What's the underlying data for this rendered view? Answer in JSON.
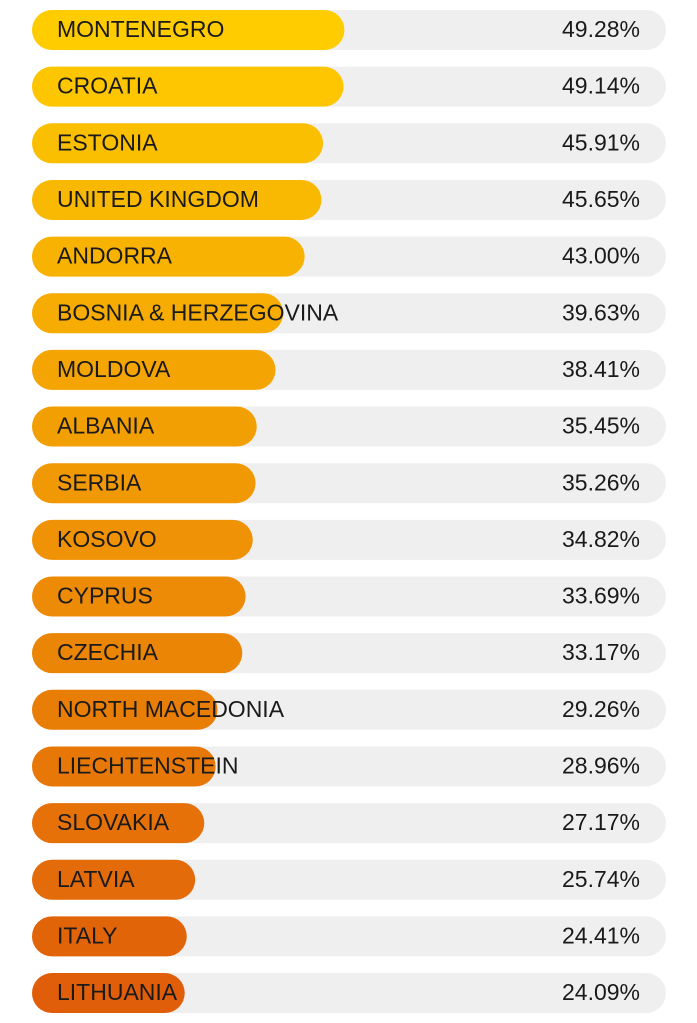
{
  "chart_data": {
    "type": "bar",
    "categories": [
      "MONTENEGRO",
      "CROATIA",
      "ESTONIA",
      "UNITED KINGDOM",
      "ANDORRA",
      "BOSNIA & HERZEGOVINA",
      "MOLDOVA",
      "ALBANIA",
      "SERBIA",
      "KOSOVO",
      "CYPRUS",
      "CZECHIA",
      "NORTH MACEDONIA",
      "LIECHTENSTEIN",
      "SLOVAKIA",
      "LATVIA",
      "ITALY",
      "LITHUANIA"
    ],
    "values": [
      49.28,
      49.14,
      45.91,
      45.65,
      43.0,
      39.63,
      38.41,
      35.45,
      35.26,
      34.82,
      33.69,
      33.17,
      29.26,
      28.96,
      27.17,
      25.74,
      24.41,
      24.09
    ],
    "value_labels": [
      "49.28%",
      "49.14%",
      "45.91%",
      "45.65%",
      "43.00%",
      "39.63%",
      "38.41%",
      "35.45%",
      "35.26%",
      "34.82%",
      "33.69%",
      "33.17%",
      "29.26%",
      "28.96%",
      "27.17%",
      "25.74%",
      "24.41%",
      "24.09%"
    ],
    "colors": [
      "#FFCC00",
      "#FDC600",
      "#FBBF01",
      "#F9B902",
      "#F8B202",
      "#F6AC03",
      "#F4A504",
      "#F29F04",
      "#F19805",
      "#EF9205",
      "#ED8B06",
      "#EB8506",
      "#E97E07",
      "#E77808",
      "#E57108",
      "#E46B09",
      "#E26409",
      "#E05E0A"
    ],
    "track_color": "#EFEFEF",
    "xlim": [
      0,
      100
    ]
  }
}
